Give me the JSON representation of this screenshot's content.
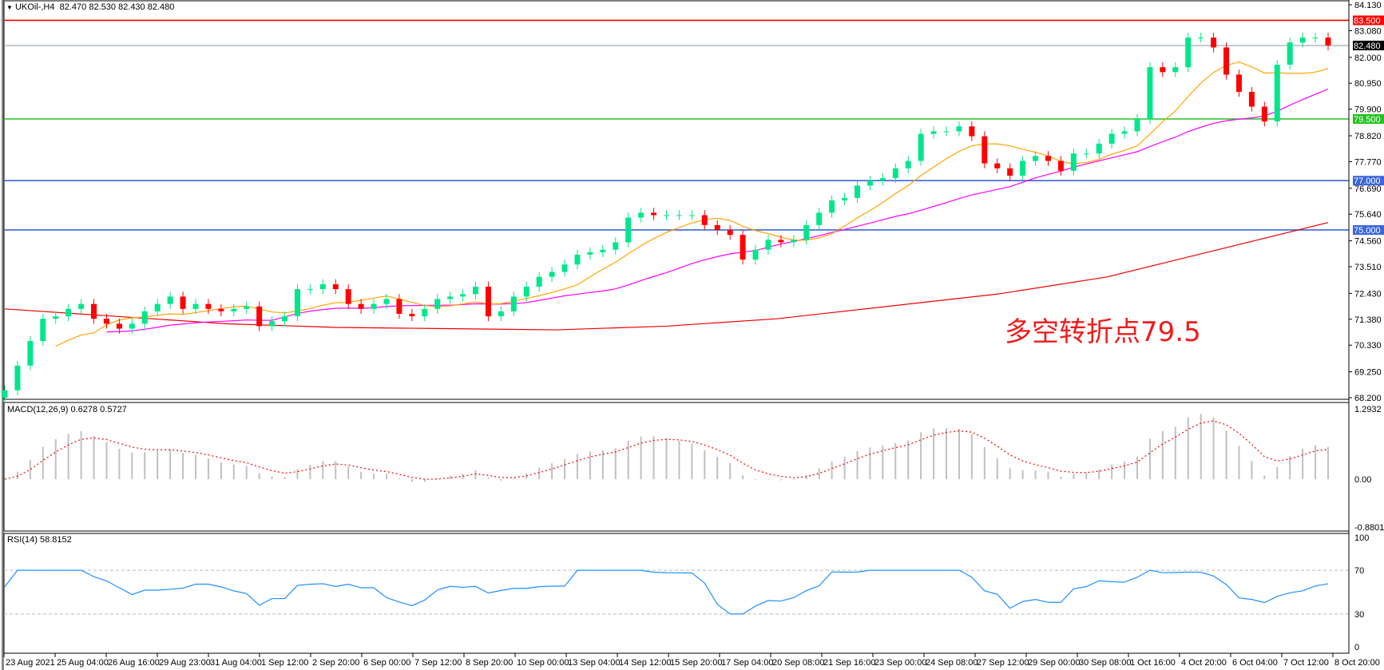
{
  "header": {
    "symbol": "UKOil-,H4",
    "ohlc": "82.470 82.530 82.430 82.480"
  },
  "macd_header": {
    "label": "MACD(12,26,9) 0.6278 0.5727"
  },
  "rsi_header": {
    "label": "RSI(14) 58.8152"
  },
  "annotation": "多空转折点79.5",
  "colors": {
    "bull": "#00e68a",
    "bear": "#ff0000",
    "ma_fast": "#ffa500",
    "ma_mid": "#ff00ff",
    "ma_slow": "#ee0000",
    "rsi": "#1e90ff",
    "macd_hist": "#c0c0c0",
    "macd_signal": "#ff0000"
  },
  "chart_data": [
    {
      "type": "candlestick",
      "ylim": [
        68.2,
        84.13
      ],
      "price_ticks": [
        "84.130",
        "83.080",
        "82.000",
        "80.950",
        "79.900",
        "78.820",
        "77.770",
        "76.690",
        "75.640",
        "74.560",
        "73.510",
        "72.430",
        "71.380",
        "70.330",
        "69.250",
        "68.200"
      ],
      "time_ticks": [
        "23 Aug 2021",
        "25 Aug 04:00",
        "26 Aug 16:00",
        "29 Aug 23:00",
        "31 Aug 04:00",
        "1 Sep 12:00",
        "2 Sep 20:00",
        "6 Sep 00:00",
        "7 Sep 12:00",
        "8 Sep 20:00",
        "10 Sep 00:00",
        "13 Sep 04:00",
        "14 Sep 12:00",
        "15 Sep 20:00",
        "17 Sep 04:00",
        "20 Sep 08:00",
        "21 Sep 16:00",
        "23 Sep 00:00",
        "24 Sep 08:00",
        "27 Sep 12:00",
        "29 Sep 00:00",
        "30 Sep 08:00",
        "1 Oct 16:00",
        "4 Oct 20:00",
        "6 Oct 04:00",
        "7 Oct 12:00",
        "8 Oct 20:00"
      ],
      "closes": [
        68.5,
        69.5,
        70.5,
        71.4,
        71.5,
        71.8,
        72.0,
        71.4,
        71.2,
        71.0,
        71.2,
        71.7,
        72.0,
        72.3,
        71.8,
        72.0,
        71.8,
        71.7,
        71.8,
        71.9,
        71.1,
        71.3,
        71.5,
        72.6,
        72.6,
        72.8,
        72.6,
        72.0,
        71.8,
        72.0,
        72.2,
        71.6,
        71.5,
        71.8,
        72.2,
        72.3,
        72.4,
        72.7,
        71.5,
        71.7,
        72.3,
        72.7,
        73.1,
        73.3,
        73.6,
        74.0,
        74.1,
        74.2,
        74.5,
        75.5,
        75.7,
        75.6,
        75.6,
        75.6,
        75.6,
        75.2,
        75.0,
        74.8,
        73.8,
        74.2,
        74.6,
        74.5,
        74.6,
        75.2,
        75.7,
        76.2,
        76.3,
        76.8,
        77.0,
        77.1,
        77.5,
        77.8,
        78.9,
        79.0,
        79.0,
        79.2,
        78.8,
        77.7,
        77.5,
        77.2,
        77.8,
        78.0,
        77.8,
        77.4,
        78.1,
        78.1,
        78.5,
        78.9,
        79.0,
        79.5,
        81.6,
        81.4,
        81.6,
        82.8,
        82.8,
        82.4,
        81.3,
        80.6,
        80.0,
        79.4,
        81.7,
        82.6,
        82.8,
        82.8,
        82.48
      ],
      "ma_slow": [
        71.8,
        71.5,
        71.2,
        71.05,
        71.0,
        70.95,
        71.1,
        71.4,
        71.9,
        72.4,
        73.1,
        74.2,
        75.3
      ],
      "levels": [
        {
          "price": "83.500",
          "color": "#ff0000"
        },
        {
          "price": "82.480",
          "color": "#000000",
          "line": "#8a9aa8"
        },
        {
          "price": "79.500",
          "color": "#22c422"
        },
        {
          "price": "77.000",
          "color": "#3a66d8"
        },
        {
          "price": "75.000",
          "color": "#3a66d8"
        }
      ]
    },
    {
      "type": "histogram+line",
      "indicator": "MACD",
      "ylim": [
        -0.8801,
        1.2932
      ],
      "ticks": [
        "1.2932",
        "0.00",
        "-0.8801"
      ]
    },
    {
      "type": "line",
      "indicator": "RSI",
      "ylim": [
        0,
        100
      ],
      "ticks": [
        "100",
        "70",
        "30",
        "0"
      ],
      "levels": [
        70,
        30
      ]
    }
  ]
}
